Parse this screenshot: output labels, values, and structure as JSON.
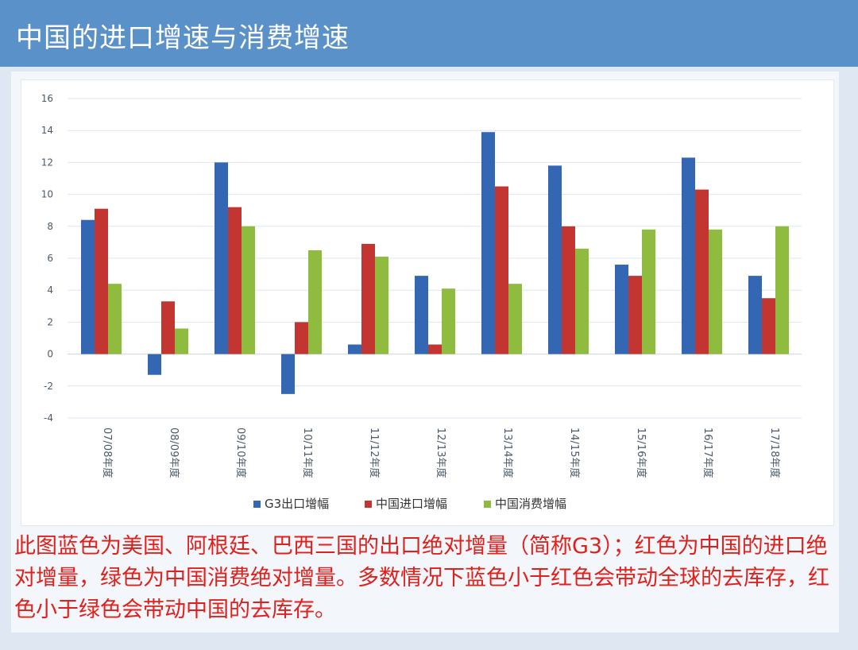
{
  "header": {
    "title": "中国的进口增速与消费增速"
  },
  "caption": "此图蓝色为美国、阿根廷、巴西三国的出口绝对增量（简称G3）；红色为中国的进口绝对增量，绿色为中国消费绝对增量。多数情况下蓝色小于红色会带动全球的去库存，红色小于绿色会带动中国的去库存。",
  "chart_data": {
    "type": "bar",
    "categories": [
      "07/08年度",
      "08/09年度",
      "09/10年度",
      "10/11年度",
      "11/12年度",
      "12/13年度",
      "13/14年度",
      "14/15年度",
      "15/16年度",
      "16/17年度",
      "17/18年度"
    ],
    "series": [
      {
        "name": "G3出口增幅",
        "color": "#3467b3",
        "values": [
          8.4,
          -1.3,
          12.0,
          -2.5,
          0.6,
          4.9,
          13.9,
          11.8,
          5.6,
          12.3,
          4.9
        ]
      },
      {
        "name": "中国进口增幅",
        "color": "#c23531",
        "values": [
          9.1,
          3.3,
          9.2,
          2.0,
          6.9,
          0.6,
          10.5,
          8.0,
          4.9,
          10.3,
          3.5
        ]
      },
      {
        "name": "中国消费增幅",
        "color": "#8fbb3e",
        "values": [
          4.4,
          1.6,
          8.0,
          6.5,
          6.1,
          4.1,
          4.4,
          6.6,
          7.8,
          7.8,
          8.0
        ]
      }
    ],
    "ylim": [
      -4,
      16
    ],
    "yticks": [
      -4,
      -2,
      0,
      2,
      4,
      6,
      8,
      10,
      12,
      14,
      16
    ],
    "grid": true,
    "legend_position": "bottom",
    "xlabel": "",
    "ylabel": ""
  }
}
